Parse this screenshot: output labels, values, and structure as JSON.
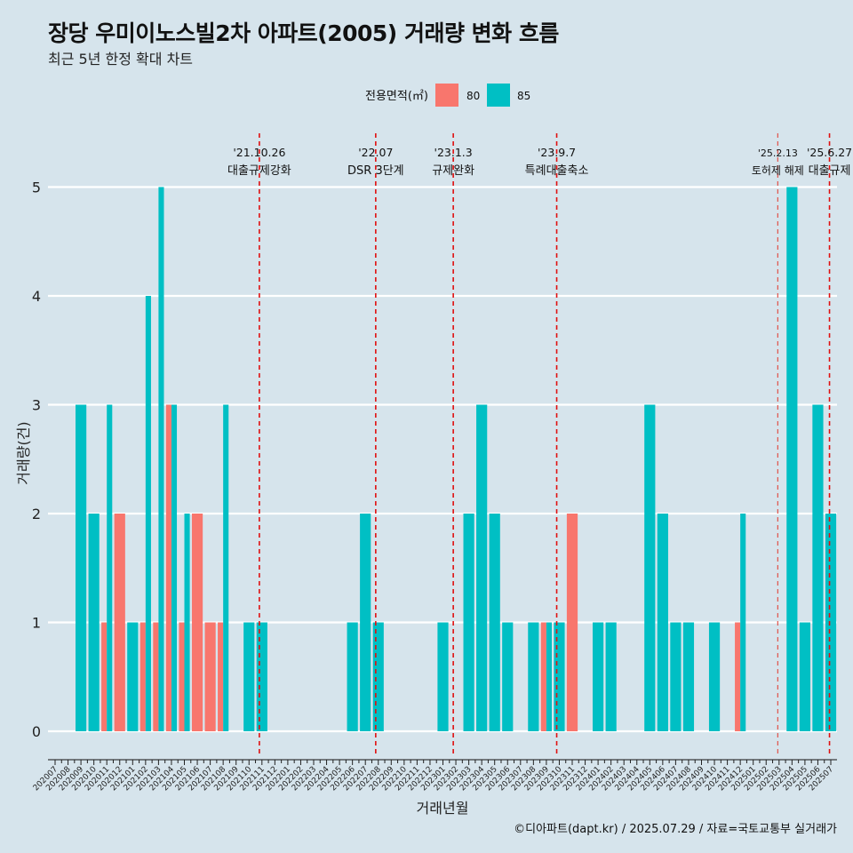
{
  "chart_data": {
    "type": "bar",
    "title": "장당 우미이노스빌2차 아파트(2005) 거래량 변화 흐름",
    "subtitle": "최근 5년 한정 확대 차트",
    "xlabel": "거래년월",
    "ylabel": "거래량(건)",
    "ylim": [
      0,
      5
    ],
    "yticks": [
      0,
      1,
      2,
      3,
      4,
      5
    ],
    "legend_title": "전용면적(㎡)",
    "legend_position": "top",
    "categories": [
      "202007",
      "202008",
      "202009",
      "202010",
      "202011",
      "202012",
      "202101",
      "202102",
      "202103",
      "202104",
      "202105",
      "202106",
      "202107",
      "202108",
      "202109",
      "202110",
      "202111",
      "202112",
      "202201",
      "202202",
      "202203",
      "202204",
      "202205",
      "202206",
      "202207",
      "202208",
      "202209",
      "202210",
      "202211",
      "202212",
      "202301",
      "202302",
      "202303",
      "202304",
      "202305",
      "202306",
      "202307",
      "202308",
      "202309",
      "202310",
      "202311",
      "202312",
      "202401",
      "202402",
      "202403",
      "202404",
      "202405",
      "202406",
      "202407",
      "202408",
      "202409",
      "202410",
      "202411",
      "202412",
      "202501",
      "202502",
      "202503",
      "202504",
      "202505",
      "202506",
      "202507"
    ],
    "series": [
      {
        "name": "80",
        "color": "#f8766d",
        "values": [
          0,
          0,
          0,
          0,
          1,
          2,
          0,
          1,
          1,
          3,
          1,
          2,
          1,
          1,
          0,
          0,
          0,
          0,
          0,
          0,
          0,
          0,
          0,
          0,
          0,
          0,
          0,
          0,
          0,
          0,
          0,
          0,
          0,
          0,
          0,
          0,
          0,
          0,
          1,
          0,
          2,
          0,
          0,
          0,
          0,
          0,
          0,
          0,
          0,
          0,
          0,
          0,
          0,
          1,
          0,
          0,
          0,
          0,
          0,
          0,
          0
        ]
      },
      {
        "name": "85",
        "color": "#00bfc4",
        "values": [
          0,
          0,
          3,
          2,
          3,
          0,
          1,
          4,
          5,
          3,
          2,
          0,
          0,
          3,
          0,
          1,
          1,
          0,
          0,
          0,
          0,
          0,
          0,
          1,
          2,
          1,
          0,
          0,
          0,
          0,
          1,
          0,
          2,
          3,
          2,
          1,
          0,
          1,
          1,
          1,
          0,
          0,
          1,
          1,
          0,
          0,
          3,
          2,
          1,
          1,
          0,
          1,
          0,
          2,
          0,
          0,
          0,
          5,
          1,
          3,
          2
        ]
      }
    ],
    "annotations": [
      {
        "date": "'21.10.26",
        "label": "대출규제강화",
        "month_pos": 15.8,
        "style": "dashed"
      },
      {
        "date": "'22.07",
        "label": "DSR 3단계",
        "month_pos": 24.8,
        "style": "dashed"
      },
      {
        "date": "'23.1.3",
        "label": "규제완화",
        "month_pos": 30.8,
        "style": "dashed"
      },
      {
        "date": "'23.9.7",
        "label": "특례대출축소",
        "month_pos": 38.8,
        "style": "dashed"
      },
      {
        "date": "'25.2.13",
        "label": "토허제 해제",
        "month_pos": 55.9,
        "style": "dashed-light"
      },
      {
        "date": "'25.6.27",
        "label": "대출규제",
        "month_pos": 59.9,
        "style": "dashed"
      }
    ],
    "caption": "©디아파트(dapt.kr) / 2025.07.29 / 자료=국토교통부 실거래가"
  }
}
